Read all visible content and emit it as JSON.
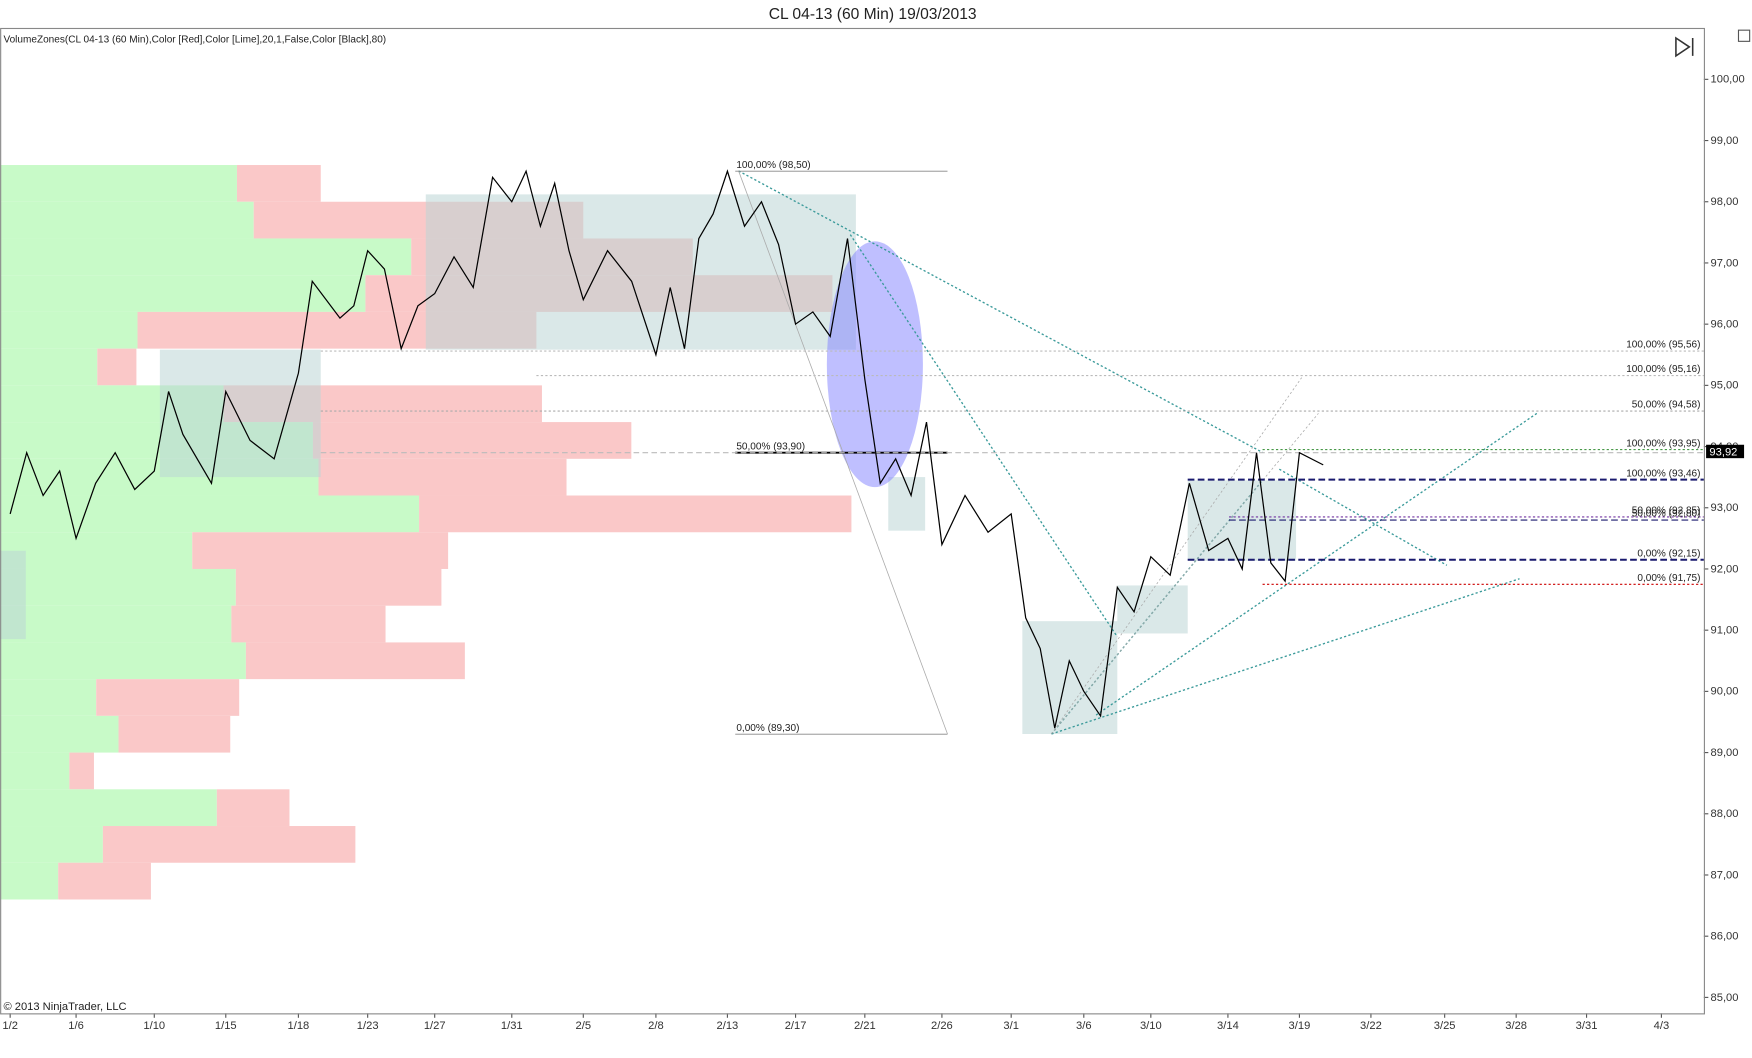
{
  "chart_data": {
    "type": "line",
    "title": "CL 04-13 (60 Min)  19/03/2013",
    "indicator_label": "VolumeZones(CL 04-13 (60 Min),Color [Red],Color [Lime],20,1,False,Color [Black],80)",
    "copyright": "© 2013 NinjaTrader, LLC",
    "xticks": [
      {
        "value": 2,
        "label": "1/2"
      },
      {
        "value": 6,
        "label": "1/6"
      },
      {
        "value": 10,
        "label": "1/10"
      },
      {
        "value": 15,
        "label": "1/15"
      },
      {
        "value": 18,
        "label": "1/18"
      },
      {
        "value": 23,
        "label": "1/23"
      },
      {
        "value": 27,
        "label": "1/27"
      },
      {
        "value": 31,
        "label": "1/31"
      },
      {
        "value": 36,
        "label": "2/5"
      },
      {
        "value": 39,
        "label": "2/8"
      },
      {
        "value": 44,
        "label": "2/13"
      },
      {
        "value": 48,
        "label": "2/17"
      },
      {
        "value": 52,
        "label": "2/21"
      },
      {
        "value": 57,
        "label": "2/26"
      },
      {
        "value": 60,
        "label": "3/1"
      },
      {
        "value": 65,
        "label": "3/6"
      },
      {
        "value": 69,
        "label": "3/10"
      },
      {
        "value": 73,
        "label": "3/14"
      },
      {
        "value": 78,
        "label": "3/19"
      },
      {
        "value": 81,
        "label": "3/22"
      },
      {
        "value": 84,
        "label": "3/25"
      },
      {
        "value": 87,
        "label": "3/28"
      },
      {
        "value": 90,
        "label": "3/31"
      },
      {
        "value": 93,
        "label": "4/3"
      }
    ],
    "ylim": [
      84.74,
      100.84
    ],
    "yticks": [
      {
        "value": 85,
        "label": "85,00"
      },
      {
        "value": 86,
        "label": "86,00"
      },
      {
        "value": 87,
        "label": "87,00"
      },
      {
        "value": 88,
        "label": "88,00"
      },
      {
        "value": 89,
        "label": "89,00"
      },
      {
        "value": 90,
        "label": "90,00"
      },
      {
        "value": 91,
        "label": "91,00"
      },
      {
        "value": 92,
        "label": "92,00"
      },
      {
        "value": 93,
        "label": "93,00"
      },
      {
        "value": 94,
        "label": "94,00"
      },
      {
        "value": 95,
        "label": "95,00"
      },
      {
        "value": 96,
        "label": "96,00"
      },
      {
        "value": 97,
        "label": "97,00"
      },
      {
        "value": 98,
        "label": "98,00"
      },
      {
        "value": 99,
        "label": "99,00"
      },
      {
        "value": 100,
        "label": "100,00"
      }
    ],
    "series": [
      {
        "color": "#000000",
        "x": [
          2,
          3,
          4,
          5,
          6,
          7,
          8,
          9,
          10,
          11,
          12,
          14,
          15,
          16,
          17,
          18,
          19,
          21,
          22,
          23,
          24,
          25,
          26,
          27,
          28,
          29,
          30,
          31,
          32,
          33,
          34,
          35,
          36,
          37,
          38,
          39,
          40,
          41,
          42,
          43,
          44,
          45,
          46,
          47,
          48,
          49,
          50,
          51,
          52,
          53,
          54,
          55,
          56,
          57,
          58,
          59,
          60,
          61,
          62,
          63,
          64,
          65,
          66,
          67,
          68,
          69,
          70,
          71,
          72,
          73,
          74,
          75,
          76,
          77,
          78,
          79
        ],
        "values": [
          92.9,
          93.9,
          93.2,
          93.6,
          92.5,
          93.4,
          93.9,
          93.3,
          93.6,
          94.9,
          94.2,
          93.4,
          94.9,
          94.1,
          93.8,
          95.2,
          96.7,
          96.1,
          96.3,
          97.2,
          96.9,
          95.6,
          96.3,
          96.5,
          97.1,
          96.6,
          98.4,
          98.0,
          98.5,
          97.6,
          98.3,
          97.2,
          96.4,
          97.2,
          96.7,
          95.5,
          96.6,
          95.6,
          97.4,
          97.8,
          98.5,
          97.6,
          98.0,
          97.3,
          96.0,
          96.2,
          95.8,
          97.4,
          95.1,
          93.4,
          93.8,
          93.2,
          94.4,
          92.4,
          93.2,
          92.6,
          92.9,
          91.2,
          90.7,
          89.4,
          90.5,
          90.0,
          89.6,
          91.7,
          91.3,
          92.2,
          91.9,
          93.4,
          92.3,
          92.5,
          92.0,
          93.9,
          92.1,
          91.8,
          93.9,
          93.7
        ]
      }
    ],
    "volume_zones": {
      "price_bins": [
        98.6,
        98,
        97.4,
        96.8,
        96.2,
        95.6,
        95,
        94.4,
        93.8,
        93.2,
        92.6,
        92,
        91.4,
        90.8,
        90.2,
        89.6,
        89,
        88.4,
        87.8,
        87.2,
        86.6
      ],
      "buy": [
        212,
        227,
        368,
        327,
        123,
        87,
        200,
        280,
        285,
        375,
        172,
        211,
        207,
        220,
        86,
        106,
        62,
        194,
        92,
        52
      ],
      "sell": [
        75,
        295,
        252,
        418,
        357,
        35,
        285,
        285,
        222,
        387,
        229,
        184,
        138,
        196,
        128,
        100,
        22,
        65,
        226,
        83
      ],
      "buy_color": "#c8fac8",
      "sell_color": "#fac8c8"
    },
    "fib_left": [
      {
        "level": 98.5,
        "label": "100,00% (98,50)",
        "color": "#888888"
      },
      {
        "level": 93.9,
        "label": "50,00% (93,90)",
        "color": "#000000"
      },
      {
        "level": 89.3,
        "label": "0,00% (89,30)",
        "color": "#888888"
      }
    ],
    "fib_right": [
      {
        "level": 95.56,
        "label": "100,00% (95,56)",
        "color": "#bbbbbb"
      },
      {
        "level": 95.16,
        "label": "100,00% (95,16)",
        "color": "#bbbbbb"
      },
      {
        "level": 94.58,
        "label": "50,00% (94,58)",
        "color": "#aaaaaa"
      },
      {
        "level": 93.95,
        "label": "100,00% (93,95)",
        "color": "#2e8b2e"
      },
      {
        "level": 93.46,
        "label": "100,00% (93,46)",
        "color": "#1a1a6e"
      },
      {
        "level": 92.85,
        "label": "50,00% (92,85)",
        "color": "#7030a0"
      },
      {
        "level": 92.8,
        "label": "50,00% (92,80)",
        "color": "#1a1a6e"
      },
      {
        "level": 92.15,
        "label": "0,00% (92,15)",
        "color": "#1a1a6e"
      },
      {
        "level": 91.75,
        "label": "0,00% (91,75)",
        "color": "#cc0000"
      }
    ],
    "last_price": {
      "value": 93.92,
      "label": "93,92"
    }
  }
}
